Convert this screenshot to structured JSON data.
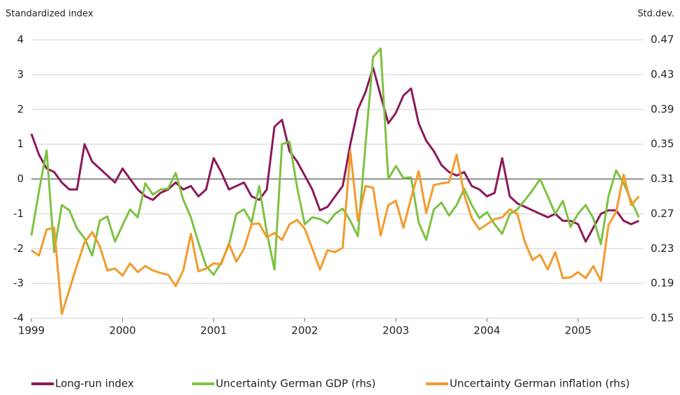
{
  "chart_data": {
    "type": "line",
    "ylabel": "Standardized index",
    "y2label": "Std.dev.",
    "x": [
      1999.0,
      1999.083,
      1999.167,
      1999.25,
      1999.333,
      1999.417,
      1999.5,
      1999.583,
      1999.667,
      1999.75,
      1999.833,
      1999.917,
      2000.0,
      2000.083,
      2000.167,
      2000.25,
      2000.333,
      2000.417,
      2000.5,
      2000.583,
      2000.667,
      2000.75,
      2000.833,
      2000.917,
      2001.0,
      2001.083,
      2001.167,
      2001.25,
      2001.333,
      2001.417,
      2001.5,
      2001.583,
      2001.667,
      2001.75,
      2001.833,
      2001.917,
      2002.0,
      2002.083,
      2002.167,
      2002.25,
      2002.333,
      2002.417,
      2002.5,
      2002.583,
      2002.667,
      2002.75,
      2002.833,
      2002.917,
      2003.0,
      2003.083,
      2003.167,
      2003.25,
      2003.333,
      2003.417,
      2003.5,
      2003.583,
      2003.667,
      2003.75,
      2003.833,
      2003.917,
      2004.0,
      2004.083,
      2004.167,
      2004.25,
      2004.333,
      2004.417,
      2004.5,
      2004.583,
      2004.667,
      2004.75,
      2004.833,
      2004.917,
      2005.0,
      2005.083,
      2005.167,
      2005.25,
      2005.333,
      2005.417,
      2005.5,
      2005.583,
      2005.667
    ],
    "series": [
      {
        "name": "Long-run index",
        "color": "#8b1a5a",
        "axis": "y",
        "values": [
          1.3,
          0.7,
          0.3,
          0.2,
          -0.1,
          -0.3,
          -0.3,
          1.0,
          0.5,
          0.3,
          0.1,
          -0.1,
          0.3,
          0.0,
          -0.3,
          -0.5,
          -0.6,
          -0.4,
          -0.3,
          -0.1,
          -0.3,
          -0.2,
          -0.5,
          -0.3,
          0.6,
          0.2,
          -0.3,
          -0.2,
          -0.1,
          -0.5,
          -0.6,
          -0.3,
          1.5,
          1.7,
          0.8,
          0.5,
          0.1,
          -0.3,
          -0.9,
          -0.8,
          -0.5,
          -0.2,
          1.0,
          2.0,
          2.5,
          3.2,
          2.4,
          1.6,
          1.9,
          2.4,
          2.6,
          1.6,
          1.1,
          0.8,
          0.4,
          0.2,
          0.1,
          0.2,
          -0.2,
          -0.3,
          -0.5,
          -0.4,
          0.6,
          -0.5,
          -0.7,
          -0.8,
          -0.9,
          -1.0,
          -1.1,
          -1.0,
          -1.2,
          -1.2,
          -1.3,
          -1.8,
          -1.4,
          -1.0,
          -0.9,
          -0.9,
          -1.2,
          -1.3,
          -1.2
        ]
      },
      {
        "name": "Uncertainty German GDP (rhs)",
        "color": "#7dc242",
        "axis": "y2",
        "values": [
          0.245,
          0.296,
          0.343,
          0.226,
          0.28,
          0.274,
          0.253,
          0.242,
          0.222,
          0.262,
          0.267,
          0.238,
          0.257,
          0.275,
          0.266,
          0.305,
          0.292,
          0.298,
          0.299,
          0.317,
          0.286,
          0.266,
          0.237,
          0.21,
          0.2,
          0.214,
          0.234,
          0.27,
          0.275,
          0.26,
          0.302,
          0.249,
          0.206,
          0.35,
          0.353,
          0.3,
          0.258,
          0.266,
          0.264,
          0.259,
          0.27,
          0.276,
          0.262,
          0.244,
          0.35,
          0.45,
          0.46,
          0.31,
          0.325,
          0.311,
          0.312,
          0.26,
          0.24,
          0.275,
          0.283,
          0.268,
          0.28,
          0.299,
          0.28,
          0.265,
          0.272,
          0.258,
          0.247,
          0.27,
          0.275,
          0.286,
          0.297,
          0.31,
          0.29,
          0.27,
          0.285,
          0.255,
          0.27,
          0.28,
          0.265,
          0.235,
          0.29,
          0.32,
          0.305,
          0.285,
          0.266
        ]
      },
      {
        "name": "Uncertainty German inflation (rhs)",
        "color": "#f39a2b",
        "axis": "y2",
        "values": [
          0.228,
          0.222,
          0.252,
          0.254,
          0.155,
          0.183,
          0.211,
          0.237,
          0.249,
          0.233,
          0.205,
          0.207,
          0.199,
          0.213,
          0.203,
          0.21,
          0.205,
          0.202,
          0.2,
          0.187,
          0.205,
          0.247,
          0.204,
          0.207,
          0.213,
          0.212,
          0.236,
          0.215,
          0.23,
          0.258,
          0.259,
          0.243,
          0.248,
          0.24,
          0.258,
          0.263,
          0.253,
          0.23,
          0.206,
          0.228,
          0.226,
          0.231,
          0.342,
          0.262,
          0.302,
          0.3,
          0.245,
          0.28,
          0.285,
          0.254,
          0.288,
          0.319,
          0.271,
          0.303,
          0.305,
          0.306,
          0.338,
          0.292,
          0.265,
          0.252,
          0.258,
          0.264,
          0.266,
          0.275,
          0.27,
          0.237,
          0.217,
          0.223,
          0.206,
          0.226,
          0.196,
          0.197,
          0.203,
          0.196,
          0.21,
          0.193,
          0.257,
          0.272,
          0.315,
          0.28,
          0.29
        ]
      }
    ],
    "xlim": [
      1999,
      2005.72
    ],
    "xticks": [
      1999,
      2000,
      2001,
      2002,
      2003,
      2004,
      2005
    ],
    "ylim": [
      -4,
      4
    ],
    "yticks": [
      -4,
      -3,
      -2,
      -1,
      0,
      1,
      2,
      3,
      4
    ],
    "y2lim": [
      0.15,
      0.47
    ],
    "y2ticks": [
      0.15,
      0.19,
      0.23,
      0.27,
      0.31,
      0.35,
      0.39,
      0.43,
      0.47
    ],
    "grid": true,
    "legend": "bottom"
  }
}
